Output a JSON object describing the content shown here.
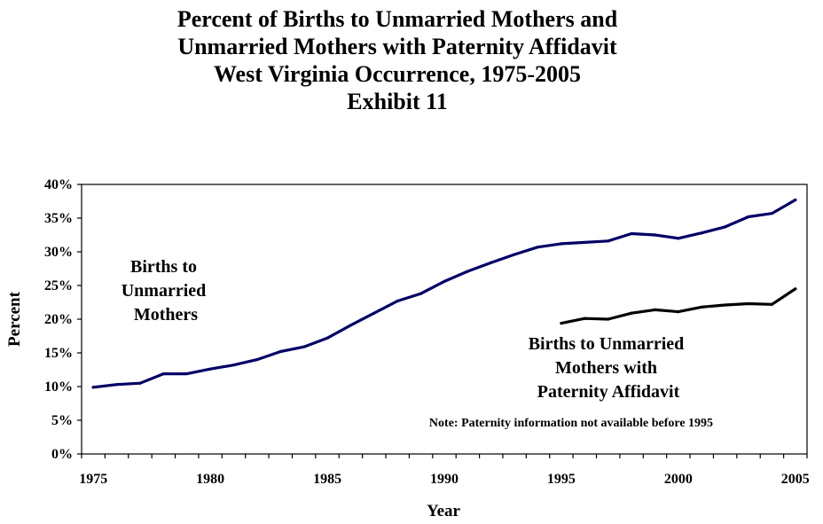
{
  "chart_data": {
    "type": "line",
    "title_lines": [
      "Percent of Births to Unmarried Mothers and",
      "Unmarried Mothers with Paternity Affidavit",
      "West Virginia Occurrence, 1975-2005",
      "Exhibit 11"
    ],
    "xlabel": "Year",
    "ylabel": "Percent",
    "xlim": [
      1975,
      2005
    ],
    "ylim": [
      0,
      40
    ],
    "x_ticks": [
      1975,
      1980,
      1985,
      1990,
      1995,
      2000,
      2005
    ],
    "y_ticks": [
      "0%",
      "5%",
      "10%",
      "15%",
      "20%",
      "25%",
      "30%",
      "35%",
      "40%"
    ],
    "grid": false,
    "series": [
      {
        "name": "Births to Unmarried Mothers",
        "label_lines": [
          "Births to",
          "Unmarried",
          "Mothers"
        ],
        "color": "#000066",
        "x": [
          1975,
          1976,
          1977,
          1978,
          1979,
          1980,
          1981,
          1982,
          1983,
          1984,
          1985,
          1986,
          1987,
          1988,
          1989,
          1990,
          1991,
          1992,
          1993,
          1994,
          1995,
          1996,
          1997,
          1998,
          1999,
          2000,
          2001,
          2002,
          2003,
          2004,
          2005
        ],
        "values": [
          9.9,
          10.3,
          10.5,
          11.9,
          11.9,
          12.6,
          13.2,
          14.0,
          15.2,
          15.9,
          17.2,
          19.1,
          20.9,
          22.7,
          23.8,
          25.6,
          27.1,
          28.4,
          29.6,
          30.7,
          31.2,
          31.4,
          31.6,
          32.7,
          32.5,
          32.0,
          32.8,
          33.7,
          35.2,
          35.7,
          37.7
        ]
      },
      {
        "name": "Births to Unmarried Mothers with Paternity Affidavit",
        "label_lines": [
          "Births to Unmarried",
          "Mothers with",
          "Paternity Affidavit"
        ],
        "color": "#000000",
        "x": [
          1995,
          1996,
          1997,
          1998,
          1999,
          2000,
          2001,
          2002,
          2003,
          2004,
          2005
        ],
        "values": [
          19.4,
          20.1,
          20.0,
          20.9,
          21.4,
          21.1,
          21.8,
          22.1,
          22.3,
          22.2,
          24.5
        ]
      }
    ],
    "note": "Note:  Paternity information not available before 1995"
  }
}
